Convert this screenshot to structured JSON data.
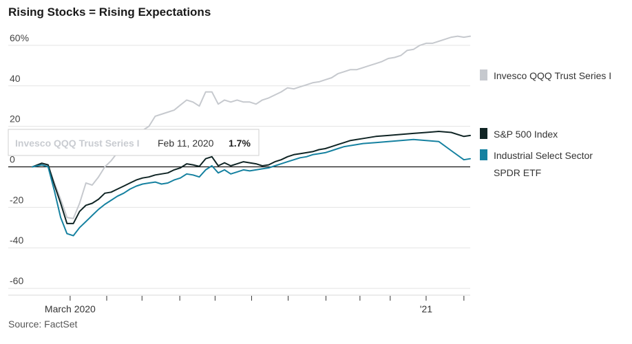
{
  "chart_data": {
    "type": "line",
    "title": "Rising Stocks = Rising Expectations",
    "source": "Source: FactSet",
    "y_ticks": [
      "60%",
      "40",
      "20",
      "0",
      "-20",
      "-40",
      "-60"
    ],
    "y_tick_values": [
      60,
      40,
      20,
      0,
      -20,
      -40,
      -60
    ],
    "ylim": [
      -62,
      62
    ],
    "x_ticks": [
      "March 2020",
      "'21"
    ],
    "x_tick_positions": [
      0.0863,
      0.8993
    ],
    "legend_placement": "right",
    "grid": true,
    "series": [
      {
        "name": "Invesco QQQ Trust Series I",
        "color": "#c6c9ce",
        "values": [
          [
            0.0,
            0.0
          ],
          [
            0.0216,
            1.2
          ],
          [
            0.036,
            0.5
          ],
          [
            0.0504,
            -8.0
          ],
          [
            0.0647,
            -16.0
          ],
          [
            0.0791,
            -25.0
          ],
          [
            0.0935,
            -25.5
          ],
          [
            0.1079,
            -18.0
          ],
          [
            0.1223,
            -8.0
          ],
          [
            0.1367,
            -9.0
          ],
          [
            0.1511,
            -5.0
          ],
          [
            0.1655,
            0.0
          ],
          [
            0.1799,
            3.0
          ],
          [
            0.1942,
            7.0
          ],
          [
            0.2086,
            12.0
          ],
          [
            0.223,
            14.0
          ],
          [
            0.2374,
            15.0
          ],
          [
            0.2518,
            18.0
          ],
          [
            0.2662,
            20.0
          ],
          [
            0.2806,
            25.0
          ],
          [
            0.295,
            26.0
          ],
          [
            0.3094,
            27.0
          ],
          [
            0.3237,
            28.0
          ],
          [
            0.3381,
            30.5
          ],
          [
            0.3525,
            33.0
          ],
          [
            0.3669,
            32.0
          ],
          [
            0.3813,
            30.0
          ],
          [
            0.3957,
            37.0
          ],
          [
            0.4101,
            37.0
          ],
          [
            0.4245,
            31.0
          ],
          [
            0.4388,
            33.0
          ],
          [
            0.4532,
            32.0
          ],
          [
            0.4676,
            33.0
          ],
          [
            0.482,
            32.0
          ],
          [
            0.4964,
            32.0
          ],
          [
            0.5108,
            31.0
          ],
          [
            0.5252,
            33.0
          ],
          [
            0.5396,
            34.0
          ],
          [
            0.554,
            35.5
          ],
          [
            0.5683,
            37.0
          ],
          [
            0.5827,
            39.0
          ],
          [
            0.5971,
            38.5
          ],
          [
            0.6115,
            39.5
          ],
          [
            0.6259,
            40.5
          ],
          [
            0.6403,
            41.5
          ],
          [
            0.6547,
            42.0
          ],
          [
            0.6691,
            43.0
          ],
          [
            0.6835,
            44.0
          ],
          [
            0.6978,
            46.0
          ],
          [
            0.7122,
            47.0
          ],
          [
            0.7266,
            48.0
          ],
          [
            0.741,
            48.0
          ],
          [
            0.7554,
            49.0
          ],
          [
            0.7698,
            50.0
          ],
          [
            0.7842,
            51.0
          ],
          [
            0.7986,
            52.0
          ],
          [
            0.8129,
            53.5
          ],
          [
            0.8273,
            54.0
          ],
          [
            0.8417,
            55.0
          ],
          [
            0.8561,
            57.5
          ],
          [
            0.8705,
            58.0
          ],
          [
            0.8849,
            60.0
          ],
          [
            0.8993,
            61.0
          ],
          [
            0.9137,
            61.0
          ],
          [
            0.9281,
            62.0
          ],
          [
            0.9424,
            63.0
          ],
          [
            0.9568,
            64.0
          ],
          [
            0.9712,
            64.5
          ],
          [
            0.9856,
            64.0
          ],
          [
            1.0,
            64.5
          ]
        ]
      },
      {
        "name": "S&P 500 Index",
        "color": "#0f2424",
        "values": [
          [
            0.0,
            0.0
          ],
          [
            0.0216,
            1.8
          ],
          [
            0.036,
            1.0
          ],
          [
            0.0504,
            -9.0
          ],
          [
            0.0647,
            -18.0
          ],
          [
            0.0791,
            -28.0
          ],
          [
            0.0935,
            -28.0
          ],
          [
            0.1079,
            -22.0
          ],
          [
            0.1223,
            -19.0
          ],
          [
            0.1367,
            -18.0
          ],
          [
            0.1511,
            -16.0
          ],
          [
            0.1655,
            -13.0
          ],
          [
            0.1799,
            -12.5
          ],
          [
            0.1942,
            -11.0
          ],
          [
            0.2086,
            -9.5
          ],
          [
            0.223,
            -8.0
          ],
          [
            0.2374,
            -6.5
          ],
          [
            0.2518,
            -5.5
          ],
          [
            0.2662,
            -5.0
          ],
          [
            0.2806,
            -4.0
          ],
          [
            0.295,
            -3.5
          ],
          [
            0.3094,
            -3.0
          ],
          [
            0.3237,
            -1.5
          ],
          [
            0.3381,
            -0.5
          ],
          [
            0.3525,
            1.5
          ],
          [
            0.3669,
            1.0
          ],
          [
            0.3813,
            0.2
          ],
          [
            0.3957,
            4.0
          ],
          [
            0.4101,
            5.0
          ],
          [
            0.4245,
            0.5
          ],
          [
            0.4388,
            2.0
          ],
          [
            0.4532,
            0.5
          ],
          [
            0.4676,
            1.5
          ],
          [
            0.482,
            2.5
          ],
          [
            0.4964,
            2.0
          ],
          [
            0.5108,
            1.5
          ],
          [
            0.5252,
            0.5
          ],
          [
            0.5396,
            1.0
          ],
          [
            0.554,
            2.5
          ],
          [
            0.5683,
            3.5
          ],
          [
            0.5827,
            5.0
          ],
          [
            0.5971,
            6.0
          ],
          [
            0.6115,
            6.5
          ],
          [
            0.6259,
            7.0
          ],
          [
            0.6403,
            7.5
          ],
          [
            0.6547,
            8.5
          ],
          [
            0.6691,
            9.0
          ],
          [
            0.6835,
            10.0
          ],
          [
            0.6978,
            11.0
          ],
          [
            0.7122,
            12.0
          ],
          [
            0.7266,
            13.0
          ],
          [
            0.741,
            13.5
          ],
          [
            0.7554,
            14.0
          ],
          [
            0.7842,
            15.0
          ],
          [
            0.8129,
            15.5
          ],
          [
            0.8417,
            16.0
          ],
          [
            0.8705,
            16.5
          ],
          [
            0.8993,
            17.0
          ],
          [
            0.9281,
            17.5
          ],
          [
            0.9568,
            17.0
          ],
          [
            0.9856,
            15.0
          ],
          [
            1.0,
            15.5
          ]
        ]
      },
      {
        "name": "Industrial Select Sector SPDR ETF",
        "color": "#1581a0",
        "values": [
          [
            0.0,
            0.0
          ],
          [
            0.0216,
            1.0
          ],
          [
            0.036,
            0.0
          ],
          [
            0.0504,
            -12.0
          ],
          [
            0.0647,
            -25.0
          ],
          [
            0.0791,
            -33.0
          ],
          [
            0.0935,
            -34.0
          ],
          [
            0.1079,
            -30.0
          ],
          [
            0.1223,
            -27.0
          ],
          [
            0.1367,
            -24.0
          ],
          [
            0.1511,
            -21.0
          ],
          [
            0.1655,
            -18.5
          ],
          [
            0.1799,
            -16.5
          ],
          [
            0.1942,
            -14.5
          ],
          [
            0.2086,
            -13.0
          ],
          [
            0.223,
            -11.0
          ],
          [
            0.2374,
            -9.5
          ],
          [
            0.2518,
            -8.5
          ],
          [
            0.2662,
            -8.0
          ],
          [
            0.2806,
            -7.5
          ],
          [
            0.295,
            -8.5
          ],
          [
            0.3094,
            -8.0
          ],
          [
            0.3237,
            -6.5
          ],
          [
            0.3381,
            -5.5
          ],
          [
            0.3525,
            -3.5
          ],
          [
            0.3669,
            -4.0
          ],
          [
            0.3813,
            -5.0
          ],
          [
            0.3957,
            -1.5
          ],
          [
            0.4101,
            0.5
          ],
          [
            0.4245,
            -3.0
          ],
          [
            0.4388,
            -1.5
          ],
          [
            0.4532,
            -3.5
          ],
          [
            0.4676,
            -2.5
          ],
          [
            0.482,
            -1.5
          ],
          [
            0.4964,
            -2.0
          ],
          [
            0.5108,
            -1.5
          ],
          [
            0.5252,
            -1.0
          ],
          [
            0.5396,
            -0.5
          ],
          [
            0.554,
            0.5
          ],
          [
            0.5683,
            1.5
          ],
          [
            0.5827,
            2.5
          ],
          [
            0.5971,
            3.5
          ],
          [
            0.6115,
            4.5
          ],
          [
            0.6259,
            5.0
          ],
          [
            0.6403,
            6.0
          ],
          [
            0.6547,
            6.5
          ],
          [
            0.6691,
            7.0
          ],
          [
            0.6835,
            8.0
          ],
          [
            0.6978,
            9.0
          ],
          [
            0.7122,
            10.0
          ],
          [
            0.7266,
            10.5
          ],
          [
            0.741,
            11.0
          ],
          [
            0.7554,
            11.5
          ],
          [
            0.7842,
            12.0
          ],
          [
            0.8129,
            12.5
          ],
          [
            0.8417,
            13.0
          ],
          [
            0.8705,
            13.5
          ],
          [
            0.8993,
            13.0
          ],
          [
            0.9281,
            12.5
          ],
          [
            0.9568,
            8.0
          ],
          [
            0.9856,
            3.5
          ],
          [
            1.0,
            4.0
          ]
        ]
      }
    ],
    "tooltip": {
      "series": "Invesco QQQ Trust Series I",
      "date": "Feb 11, 2020",
      "value": "1.7%"
    }
  },
  "legend": [
    {
      "lines": [
        "Invesco QQQ Trust Series I"
      ],
      "color": "#c6c9ce"
    },
    {
      "lines": [
        "S&P 500 Index"
      ],
      "color": "#0f2424"
    },
    {
      "lines": [
        "Industrial Select Sector",
        "SPDR ETF"
      ],
      "color": "#1581a0"
    }
  ]
}
